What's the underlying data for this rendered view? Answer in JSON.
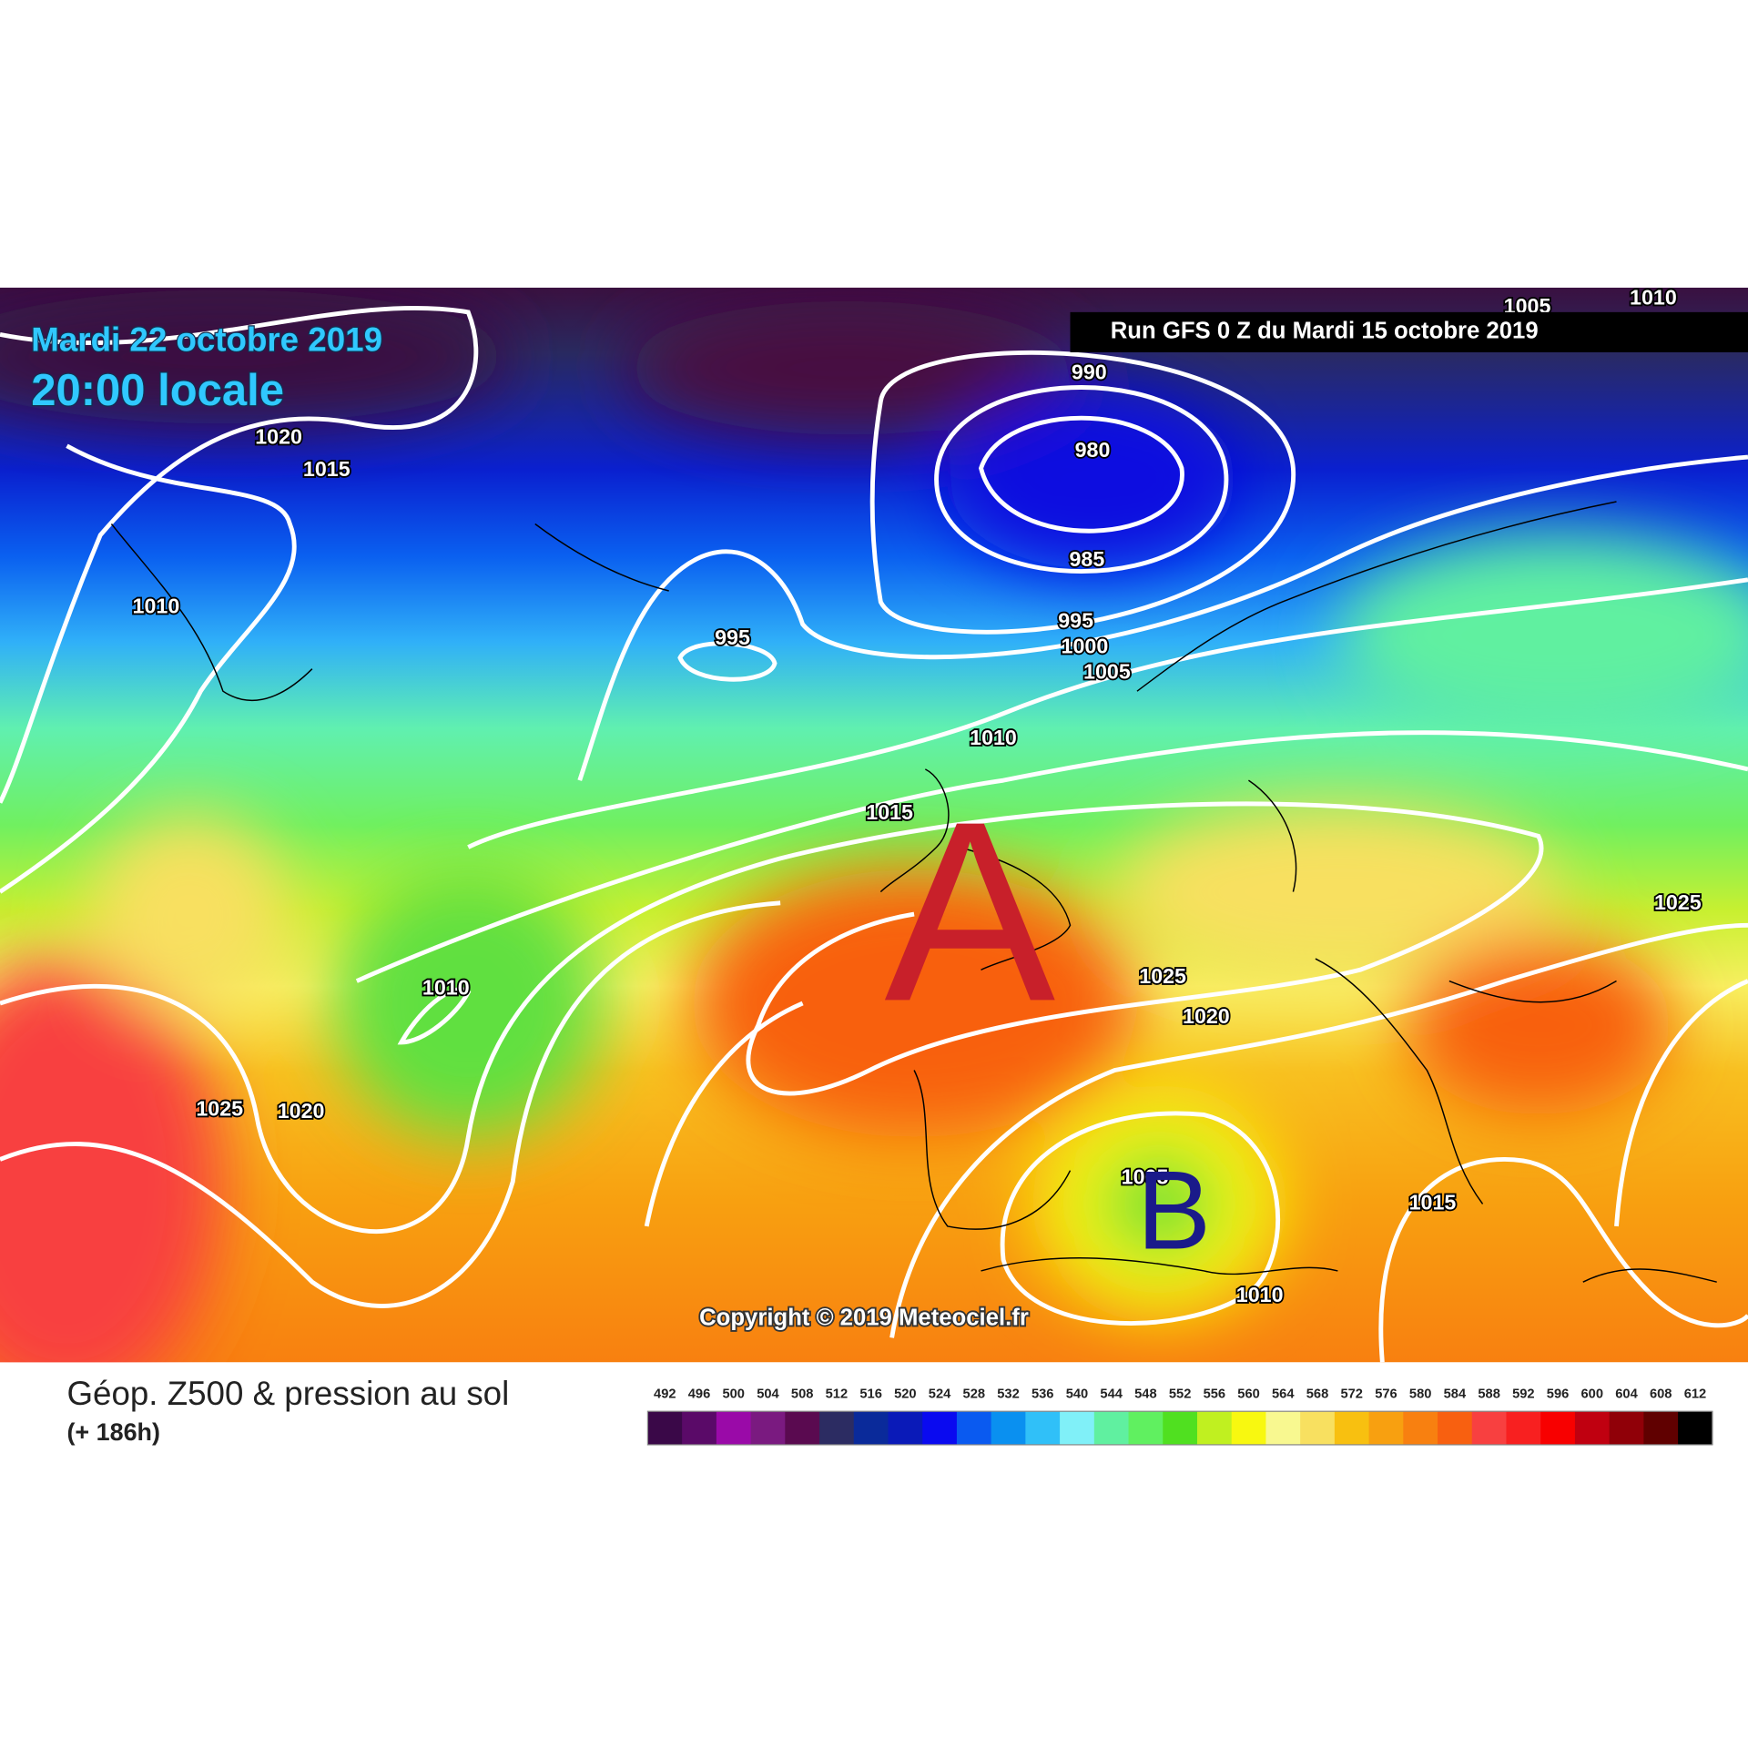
{
  "header": {
    "date": "Mardi 22 octobre 2019",
    "time": "20:00 locale",
    "run": "Run GFS 0 Z du Mardi 15 octobre 2019"
  },
  "map": {
    "marker_a": "A",
    "marker_b": "B",
    "copyright": "Copyright © 2019 Meteociel.fr",
    "isobar_labels": [
      "1020",
      "1015",
      "1010",
      "995",
      "990",
      "980",
      "985",
      "995",
      "1000",
      "1005",
      "1010",
      "1015",
      "1010",
      "1025",
      "1020",
      "1025",
      "1020",
      "1015",
      "1010",
      "1025",
      "1005",
      "1010",
      "1005"
    ]
  },
  "legend": {
    "title": "Géop. Z500 & pression au sol",
    "subtitle": "(+ 186h)",
    "items": [
      {
        "label": "492",
        "color": "#3a0848"
      },
      {
        "label": "496",
        "color": "#5a0a68"
      },
      {
        "label": "500",
        "color": "#9a0aa8"
      },
      {
        "label": "504",
        "color": "#7a1a80"
      },
      {
        "label": "508",
        "color": "#5a0a50"
      },
      {
        "label": "512",
        "color": "#2c2c62"
      },
      {
        "label": "516",
        "color": "#0a2a9a"
      },
      {
        "label": "520",
        "color": "#0a1ab8"
      },
      {
        "label": "524",
        "color": "#0a0af0"
      },
      {
        "label": "528",
        "color": "#0a5af0"
      },
      {
        "label": "532",
        "color": "#0a90f0"
      },
      {
        "label": "536",
        "color": "#30c0f8"
      },
      {
        "label": "540",
        "color": "#80f0f8"
      },
      {
        "label": "544",
        "color": "#60f0a0"
      },
      {
        "label": "548",
        "color": "#60f060"
      },
      {
        "label": "552",
        "color": "#50e020"
      },
      {
        "label": "556",
        "color": "#c0f020"
      },
      {
        "label": "560",
        "color": "#f8f810"
      },
      {
        "label": "564",
        "color": "#f8f890"
      },
      {
        "label": "568",
        "color": "#f8e060"
      },
      {
        "label": "572",
        "color": "#f8c010"
      },
      {
        "label": "576",
        "color": "#f8a010"
      },
      {
        "label": "580",
        "color": "#f88010"
      },
      {
        "label": "584",
        "color": "#f86010"
      },
      {
        "label": "588",
        "color": "#f84040"
      },
      {
        "label": "592",
        "color": "#f82020"
      },
      {
        "label": "596",
        "color": "#f80000"
      },
      {
        "label": "600",
        "color": "#c00010"
      },
      {
        "label": "604",
        "color": "#900008"
      },
      {
        "label": "608",
        "color": "#600000"
      },
      {
        "label": "612",
        "color": "#000000"
      }
    ]
  }
}
